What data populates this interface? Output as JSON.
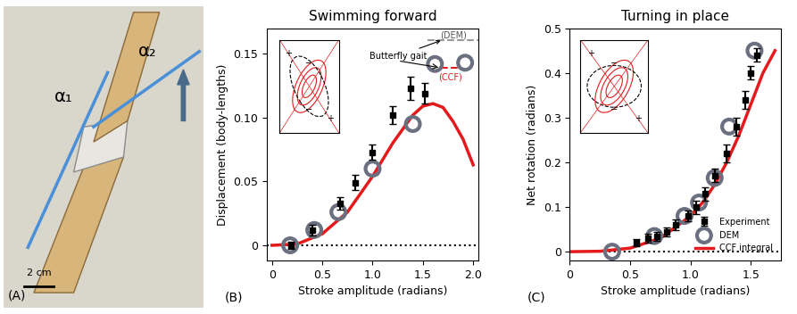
{
  "chart_data": [
    {
      "type": "photo",
      "panel_label": "(A)",
      "annotations": [
        "α₁",
        "α₂",
        "2 cm"
      ]
    },
    {
      "type": "line",
      "panel_label": "(B)",
      "title": "Swimming forward",
      "x_label": "Stroke amplitude (radians)",
      "y_label": "Displacement (body-lengths)",
      "xlim": [
        -0.05,
        2.05
      ],
      "ylim": [
        -0.012,
        0.17
      ],
      "xticks": [
        0,
        0.5,
        {
          "value": 1.0,
          "label": "1.0"
        },
        1.5,
        {
          "value": 2.0,
          "label": "2.0"
        }
      ],
      "yticks": [
        0,
        0.05,
        {
          "value": 0.1,
          "label": "0.10"
        },
        0.15
      ],
      "inset_labels": [
        "+",
        "−",
        "−",
        "+"
      ],
      "annotations": [
        "Butterfly gait"
      ],
      "reference_lines": [
        {
          "name": "(DEM)",
          "value": 0.161,
          "x": [
            1.55,
            2.05
          ],
          "color": "#9a9a9a",
          "line_style": "dashed"
        },
        {
          "name": "(CCF)",
          "value": 0.139,
          "x": [
            1.68,
            1.86
          ],
          "color": "#e41a1c",
          "line_style": "dashed"
        },
        {
          "value": 0,
          "x": [
            -0.05,
            2.05
          ],
          "color": "#000000",
          "line_style": "dotted"
        }
      ],
      "series": [
        {
          "type": "line",
          "color": "#e41a1c",
          "x": [
            0,
            0.25,
            0.5,
            0.75,
            1.0,
            1.2,
            1.4,
            1.5,
            1.6,
            1.7,
            1.8,
            1.9,
            2.0
          ],
          "values": [
            0,
            0.001,
            0.009,
            0.026,
            0.054,
            0.08,
            0.102,
            0.109,
            0.111,
            0.108,
            0.097,
            0.083,
            0.063
          ]
        },
        {
          "type": "scatter",
          "color": "#6a7080",
          "marker": "circle",
          "x": [
            0.18,
            0.42,
            0.66,
            1.0,
            1.4,
            1.62,
            1.92
          ],
          "values": [
            0,
            0.012,
            0.026,
            0.06,
            0.095,
            0.142,
            0.143
          ]
        },
        {
          "type": "errorbar",
          "color": "#000000",
          "marker": "square",
          "x": [
            0.19,
            0.4,
            0.68,
            0.83,
            1.0,
            1.2,
            1.38,
            1.52
          ],
          "values": [
            0,
            0.012,
            0.033,
            0.049,
            0.073,
            0.102,
            0.123,
            0.119
          ],
          "errors": [
            0.003,
            0.004,
            0.005,
            0.006,
            0.006,
            0.007,
            0.009,
            0.008
          ]
        }
      ]
    },
    {
      "type": "line",
      "panel_label": "(C)",
      "title": "Turning in place",
      "x_label": "Stroke amplitude (radians)",
      "y_label": "Net rotation (radians)",
      "xlim": [
        0,
        1.75
      ],
      "ylim": [
        -0.02,
        0.5
      ],
      "xticks": [
        0,
        0.5,
        {
          "value": 1.0,
          "label": "1.0"
        },
        1.5
      ],
      "yticks": [
        0,
        0.1,
        0.2,
        0.3,
        0.4,
        0.5
      ],
      "inset_labels": [
        "+",
        "−",
        "−",
        "+"
      ],
      "legend": "lower right",
      "reference_lines": [
        {
          "value": 0,
          "x": [
            0,
            1.75
          ],
          "color": "#000000",
          "line_style": "dotted"
        }
      ],
      "series": [
        {
          "name": "Experiment",
          "type": "errorbar",
          "color": "#000000",
          "marker": "square",
          "x": [
            0.55,
            0.65,
            0.72,
            0.8,
            0.88,
            0.98,
            1.05,
            1.12,
            1.2,
            1.3,
            1.38,
            1.45,
            1.5,
            1.55
          ],
          "values": [
            0.02,
            0.03,
            0.035,
            0.045,
            0.06,
            0.08,
            0.1,
            0.13,
            0.17,
            0.22,
            0.28,
            0.34,
            0.4,
            0.44
          ],
          "errors": [
            0.008,
            0.01,
            0.01,
            0.01,
            0.012,
            0.012,
            0.015,
            0.015,
            0.015,
            0.02,
            0.02,
            0.02,
            0.015,
            0.015
          ]
        },
        {
          "name": "DEM",
          "type": "scatter",
          "color": "#6a7080",
          "marker": "circle",
          "x": [
            0.35,
            0.7,
            0.95,
            1.07,
            1.2,
            1.32,
            1.53
          ],
          "values": [
            0,
            0.035,
            0.08,
            0.11,
            0.165,
            0.28,
            0.45
          ]
        },
        {
          "name": "CCF integral",
          "type": "line",
          "color": "#e41a1c",
          "x": [
            0,
            0.25,
            0.5,
            0.75,
            1.0,
            1.1,
            1.2,
            1.3,
            1.4,
            1.5,
            1.6,
            1.7
          ],
          "values": [
            0,
            0.001,
            0.008,
            0.03,
            0.08,
            0.11,
            0.15,
            0.2,
            0.26,
            0.33,
            0.4,
            0.45
          ]
        }
      ]
    }
  ]
}
